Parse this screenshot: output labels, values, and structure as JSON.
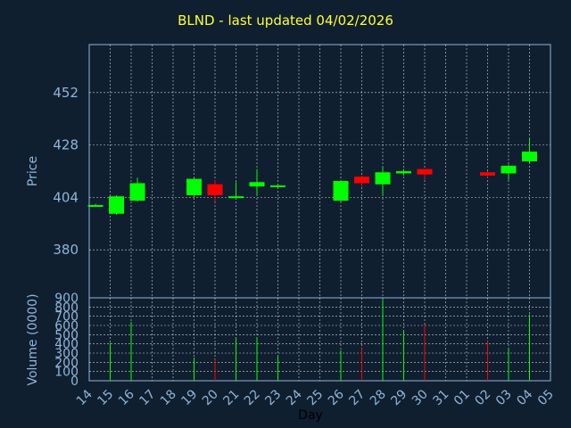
{
  "title": "BLND - last updated 04/02/2026",
  "colors": {
    "background": "#0f1f30",
    "up": "#00ff00",
    "down": "#ff0000",
    "axis_text": "#8fb5d8",
    "title": "#ffff33",
    "grid": "#ffffff"
  },
  "chart_data": [
    {
      "type": "candlestick",
      "ylabel": "Price",
      "ylim": [
        358,
        474
      ],
      "yticks": [
        380,
        404,
        428,
        452
      ],
      "grid": true,
      "x_ticks": [
        "14",
        "15",
        "16",
        "17",
        "18",
        "19",
        "20",
        "21",
        "22",
        "23",
        "24",
        "25",
        "26",
        "27",
        "28",
        "29",
        "30",
        "31",
        "01",
        "02",
        "03",
        "04",
        "05"
      ],
      "candles": [
        {
          "x": 0.3,
          "open": 400.5,
          "close": 400.5,
          "high": 401,
          "low": 400
        },
        {
          "x": 1.3,
          "open": 396.5,
          "close": 404.5,
          "high": 405,
          "low": 396
        },
        {
          "x": 2.3,
          "open": 402.5,
          "close": 410.5,
          "high": 413,
          "low": 402
        },
        {
          "x": 5.0,
          "open": 405,
          "close": 412.5,
          "high": 413,
          "low": 404
        },
        {
          "x": 6.0,
          "open": 410,
          "close": 405,
          "high": 412,
          "low": 402
        },
        {
          "x": 7.0,
          "open": 404.5,
          "close": 404.5,
          "high": 411,
          "low": 403
        },
        {
          "x": 8.0,
          "open": 409,
          "close": 411,
          "high": 417,
          "low": 405
        },
        {
          "x": 9.0,
          "open": 409.5,
          "close": 409.5,
          "high": 410,
          "low": 409
        },
        {
          "x": 12.0,
          "open": 402.5,
          "close": 411.5,
          "high": 412,
          "low": 402
        },
        {
          "x": 13.0,
          "open": 413.5,
          "close": 410.5,
          "high": 414,
          "low": 409
        },
        {
          "x": 14.0,
          "open": 410,
          "close": 415.5,
          "high": 418,
          "low": 405
        },
        {
          "x": 15.0,
          "open": 415,
          "close": 416,
          "high": 417,
          "low": 414
        },
        {
          "x": 16.0,
          "open": 417,
          "close": 414.5,
          "high": 417,
          "low": 412
        },
        {
          "x": 19.0,
          "open": 415.5,
          "close": 414,
          "high": 416,
          "low": 413
        },
        {
          "x": 20.0,
          "open": 415,
          "close": 418.5,
          "high": 419,
          "low": 412
        },
        {
          "x": 21.0,
          "open": 420.5,
          "close": 425,
          "high": 431,
          "low": 420
        }
      ]
    },
    {
      "type": "bar",
      "ylabel": "Volume (0000)",
      "xlabel": "Day",
      "ylim": [
        0,
        900
      ],
      "yticks": [
        0,
        100,
        200,
        300,
        400,
        500,
        600,
        700,
        800,
        900
      ],
      "grid": true,
      "bars": [
        {
          "x": 1.0,
          "value": 410,
          "direction": "up"
        },
        {
          "x": 2.0,
          "value": 640,
          "direction": "up"
        },
        {
          "x": 5.0,
          "value": 250,
          "direction": "up"
        },
        {
          "x": 6.0,
          "value": 230,
          "direction": "down"
        },
        {
          "x": 7.0,
          "value": 460,
          "direction": "up"
        },
        {
          "x": 8.0,
          "value": 470,
          "direction": "up"
        },
        {
          "x": 9.0,
          "value": 270,
          "direction": "up"
        },
        {
          "x": 12.0,
          "value": 330,
          "direction": "up"
        },
        {
          "x": 13.0,
          "value": 350,
          "direction": "down"
        },
        {
          "x": 14.0,
          "value": 880,
          "direction": "up"
        },
        {
          "x": 15.0,
          "value": 550,
          "direction": "up"
        },
        {
          "x": 16.0,
          "value": 610,
          "direction": "down"
        },
        {
          "x": 19.0,
          "value": 430,
          "direction": "down"
        },
        {
          "x": 20.0,
          "value": 360,
          "direction": "up"
        },
        {
          "x": 21.0,
          "value": 720,
          "direction": "up"
        }
      ]
    }
  ]
}
